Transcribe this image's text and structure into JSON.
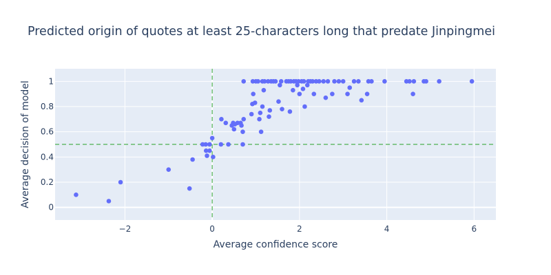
{
  "chart_data": {
    "type": "scatter",
    "title": "Predicted origin of quotes at least 25-characters long that predate Jinpingmei",
    "xlabel": "Average confidence score",
    "ylabel": "Average decision of model",
    "xlim": [
      -3.6,
      6.5
    ],
    "ylim": [
      -0.1,
      1.1
    ],
    "xticks": [
      -2,
      0,
      2,
      4,
      6
    ],
    "xtick_labels": [
      "−2",
      "0",
      "2",
      "4",
      "6"
    ],
    "yticks": [
      0,
      0.2,
      0.4,
      0.6,
      0.8,
      1
    ],
    "ytick_labels": [
      "0",
      "0.2",
      "0.4",
      "0.6",
      "0.8",
      "1"
    ],
    "grid": true,
    "reference_lines": [
      {
        "orientation": "vertical",
        "value": 0,
        "style": "dashed",
        "color": "#4caf50"
      },
      {
        "orientation": "horizontal",
        "value": 0.5,
        "style": "dashed",
        "color": "#4caf50"
      }
    ],
    "colors": {
      "marker": "#636efa",
      "plot_background": "#e5ecf6",
      "grid": "#ffffff",
      "text": "#2a3f5f",
      "reference": "#4caf50"
    },
    "series": [
      {
        "points": [
          [
            -3.12,
            0.1
          ],
          [
            -2.37,
            0.05
          ],
          [
            -2.1,
            0.2
          ],
          [
            -1.0,
            0.3
          ],
          [
            -0.52,
            0.15
          ],
          [
            -0.45,
            0.38
          ],
          [
            -0.22,
            0.5
          ],
          [
            -0.15,
            0.5
          ],
          [
            -0.14,
            0.45
          ],
          [
            -0.12,
            0.41
          ],
          [
            -0.06,
            0.5
          ],
          [
            -0.06,
            0.45
          ],
          [
            0.0,
            0.55
          ],
          [
            0.02,
            0.4
          ],
          [
            0.2,
            0.5
          ],
          [
            0.21,
            0.7
          ],
          [
            0.31,
            0.67
          ],
          [
            0.37,
            0.5
          ],
          [
            0.45,
            0.65
          ],
          [
            0.48,
            0.67
          ],
          [
            0.5,
            0.62
          ],
          [
            0.52,
            0.66
          ],
          [
            0.58,
            0.67
          ],
          [
            0.65,
            0.67
          ],
          [
            0.67,
            0.65
          ],
          [
            0.7,
            0.6
          ],
          [
            0.7,
            0.5
          ],
          [
            0.72,
            1.0
          ],
          [
            0.72,
            0.7
          ],
          [
            0.9,
            0.74
          ],
          [
            0.92,
            0.82
          ],
          [
            0.94,
            0.9
          ],
          [
            0.98,
            0.83
          ],
          [
            0.93,
            1.0
          ],
          [
            1.0,
            1.0
          ],
          [
            1.05,
            1.0
          ],
          [
            1.1,
            0.75
          ],
          [
            1.08,
            0.7
          ],
          [
            1.12,
            0.6
          ],
          [
            1.15,
            0.8
          ],
          [
            1.18,
            0.93
          ],
          [
            1.15,
            1.0
          ],
          [
            1.2,
            1.0
          ],
          [
            1.28,
            1.0
          ],
          [
            1.3,
            0.72
          ],
          [
            1.32,
            0.77
          ],
          [
            1.35,
            1.0
          ],
          [
            1.4,
            1.0
          ],
          [
            1.45,
            1.0
          ],
          [
            1.52,
            0.84
          ],
          [
            1.55,
            0.97
          ],
          [
            1.58,
            1.0
          ],
          [
            1.6,
            0.78
          ],
          [
            1.7,
            1.0
          ],
          [
            1.75,
            1.0
          ],
          [
            1.78,
            0.76
          ],
          [
            1.8,
            1.0
          ],
          [
            1.85,
            0.93
          ],
          [
            1.87,
            1.0
          ],
          [
            1.92,
            1.0
          ],
          [
            1.95,
            0.97
          ],
          [
            1.98,
            1.0
          ],
          [
            2.0,
            0.9
          ],
          [
            2.05,
            1.0
          ],
          [
            2.08,
            0.94
          ],
          [
            2.1,
            1.0
          ],
          [
            2.12,
            0.8
          ],
          [
            2.18,
            0.97
          ],
          [
            2.2,
            1.0
          ],
          [
            2.25,
            1.0
          ],
          [
            2.3,
            1.0
          ],
          [
            2.33,
            0.9
          ],
          [
            2.38,
            1.0
          ],
          [
            2.45,
            1.0
          ],
          [
            2.55,
            1.0
          ],
          [
            2.6,
            0.87
          ],
          [
            2.65,
            1.0
          ],
          [
            2.75,
            0.9
          ],
          [
            2.8,
            1.0
          ],
          [
            2.9,
            1.0
          ],
          [
            3.0,
            1.0
          ],
          [
            3.1,
            0.9
          ],
          [
            3.15,
            0.95
          ],
          [
            3.25,
            1.0
          ],
          [
            3.35,
            1.0
          ],
          [
            3.42,
            0.85
          ],
          [
            3.55,
            0.9
          ],
          [
            3.58,
            1.0
          ],
          [
            3.65,
            1.0
          ],
          [
            3.95,
            1.0
          ],
          [
            4.45,
            1.0
          ],
          [
            4.52,
            1.0
          ],
          [
            4.6,
            0.9
          ],
          [
            4.62,
            1.0
          ],
          [
            4.85,
            1.0
          ],
          [
            4.9,
            1.0
          ],
          [
            5.2,
            1.0
          ],
          [
            5.95,
            1.0
          ]
        ]
      }
    ]
  }
}
